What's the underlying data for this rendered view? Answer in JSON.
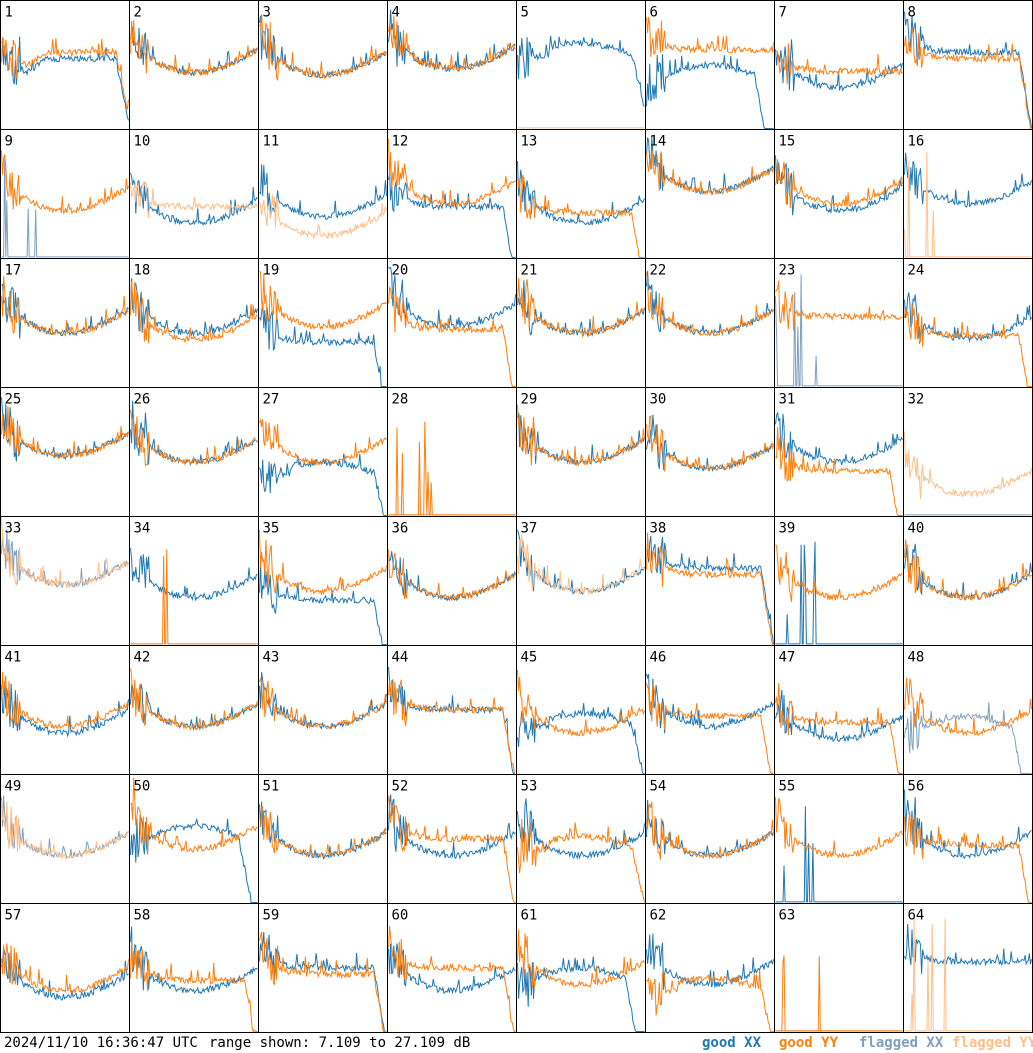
{
  "colors": {
    "good_xx": "#1f77b4",
    "good_yy": "#ff7f0e",
    "flagged_xx": "#7f9fbf",
    "flagged_yy": "#ffbf87",
    "frame": "#000000"
  },
  "footer": {
    "timestamp": "2024/11/10 16:36:47 UTC",
    "range_text": "range shown: 7.109 to 27.109 dB",
    "legend": {
      "good_xx": "good XX",
      "good_yy": "good YY",
      "flagged_xx": "flagged XX",
      "flagged_yy": "flagged YY"
    }
  },
  "chart_data": {
    "type": "line",
    "layout": "8x8 small multiples",
    "ylim": [
      7.109,
      27.109
    ],
    "yunit": "dB",
    "panels": [
      {
        "id": 1,
        "xx": "good",
        "yy": "good",
        "xx_shape": "plateau",
        "yy_shape": "plateau-dip",
        "xx_level": 0.55,
        "yy_level": 0.6
      },
      {
        "id": 2,
        "xx": "good",
        "yy": "good",
        "xx_shape": "u",
        "yy_shape": "u",
        "xx_level": 0.62,
        "yy_level": 0.62
      },
      {
        "id": 3,
        "xx": "good",
        "yy": "good",
        "xx_shape": "u",
        "yy_shape": "u",
        "xx_level": 0.6,
        "yy_level": 0.6
      },
      {
        "id": 4,
        "xx": "good",
        "yy": "good",
        "xx_shape": "u",
        "yy_shape": "u",
        "xx_level": 0.65,
        "yy_level": 0.65
      },
      {
        "id": 5,
        "xx": "good",
        "yy": "flagged",
        "xx_shape": "hump",
        "yy_shape": "flat-low",
        "xx_level": 0.55,
        "yy_level": 0.0
      },
      {
        "id": 6,
        "xx": "good",
        "yy": "good",
        "xx_shape": "hump-drop",
        "yy_shape": "flat-high",
        "xx_level": 0.35,
        "yy_level": 0.62
      },
      {
        "id": 7,
        "xx": "good",
        "yy": "good",
        "xx_shape": "u",
        "yy_shape": "flat-high",
        "xx_level": 0.5,
        "yy_level": 0.45
      },
      {
        "id": 8,
        "xx": "good",
        "yy": "good",
        "xx_shape": "flat-drop",
        "yy_shape": "flat-drop",
        "xx_level": 0.6,
        "yy_level": 0.55
      },
      {
        "id": 9,
        "xx": "flagged",
        "yy": "good",
        "xx_shape": "spikes",
        "yy_shape": "u",
        "xx_level": 0.05,
        "yy_level": 0.55
      },
      {
        "id": 10,
        "xx": "good",
        "yy": "flagged",
        "xx_shape": "u",
        "yy_shape": "flat-high",
        "xx_level": 0.45,
        "yy_level": 0.4
      },
      {
        "id": 11,
        "xx": "good",
        "yy": "flagged",
        "xx_shape": "u",
        "yy_shape": "u",
        "xx_level": 0.5,
        "yy_level": 0.35
      },
      {
        "id": 12,
        "xx": "good",
        "yy": "good",
        "xx_shape": "flat-drop",
        "yy_shape": "u",
        "xx_level": 0.4,
        "yy_level": 0.6
      },
      {
        "id": 13,
        "xx": "good",
        "yy": "good",
        "xx_shape": "u",
        "yy_shape": "flat-drop",
        "xx_level": 0.45,
        "yy_level": 0.35
      },
      {
        "id": 14,
        "xx": "good",
        "yy": "good",
        "xx_shape": "u",
        "yy_shape": "u",
        "xx_level": 0.7,
        "yy_level": 0.7
      },
      {
        "id": 15,
        "xx": "good",
        "yy": "good",
        "xx_shape": "u",
        "yy_shape": "u",
        "xx_level": 0.55,
        "yy_level": 0.6
      },
      {
        "id": 16,
        "xx": "good",
        "yy": "flagged",
        "xx_shape": "u",
        "yy_shape": "spikes",
        "xx_level": 0.6,
        "yy_level": 0.0
      },
      {
        "id": 17,
        "xx": "good",
        "yy": "good",
        "xx_shape": "u",
        "yy_shape": "u",
        "xx_level": 0.6,
        "yy_level": 0.6
      },
      {
        "id": 18,
        "xx": "good",
        "yy": "good",
        "xx_shape": "u",
        "yy_shape": "u",
        "xx_level": 0.6,
        "yy_level": 0.55
      },
      {
        "id": 19,
        "xx": "good",
        "yy": "good",
        "xx_shape": "flat-drop",
        "yy_shape": "u",
        "xx_level": 0.35,
        "yy_level": 0.65
      },
      {
        "id": 20,
        "xx": "good",
        "yy": "good",
        "xx_shape": "u",
        "yy_shape": "flat-drop",
        "xx_level": 0.65,
        "yy_level": 0.45
      },
      {
        "id": 21,
        "xx": "good",
        "yy": "good",
        "xx_shape": "u",
        "yy_shape": "u",
        "xx_level": 0.6,
        "yy_level": 0.6
      },
      {
        "id": 22,
        "xx": "good",
        "yy": "good",
        "xx_shape": "u",
        "yy_shape": "u",
        "xx_level": 0.6,
        "yy_level": 0.6
      },
      {
        "id": 23,
        "xx": "flagged",
        "yy": "good",
        "xx_shape": "spikes",
        "yy_shape": "flat-high",
        "xx_level": 0.3,
        "yy_level": 0.55
      },
      {
        "id": 24,
        "xx": "good",
        "yy": "good",
        "xx_shape": "u",
        "yy_shape": "flat-drop",
        "xx_level": 0.55,
        "yy_level": 0.4
      },
      {
        "id": 25,
        "xx": "good",
        "yy": "good",
        "xx_shape": "u",
        "yy_shape": "u",
        "xx_level": 0.65,
        "yy_level": 0.65
      },
      {
        "id": 26,
        "xx": "good",
        "yy": "good",
        "xx_shape": "u",
        "yy_shape": "u",
        "xx_level": 0.6,
        "yy_level": 0.6
      },
      {
        "id": 27,
        "xx": "good",
        "yy": "good",
        "xx_shape": "hump",
        "yy_shape": "u",
        "xx_level": 0.3,
        "yy_level": 0.6
      },
      {
        "id": 28,
        "xx": "flagged",
        "yy": "good",
        "xx_shape": "flat-low",
        "yy_shape": "spikes",
        "xx_level": 0.0,
        "yy_level": 0.0
      },
      {
        "id": 29,
        "xx": "good",
        "yy": "good",
        "xx_shape": "u",
        "yy_shape": "u",
        "xx_level": 0.6,
        "yy_level": 0.6
      },
      {
        "id": 30,
        "xx": "good",
        "yy": "good",
        "xx_shape": "u",
        "yy_shape": "u",
        "xx_level": 0.55,
        "yy_level": 0.55
      },
      {
        "id": 31,
        "xx": "good",
        "yy": "good",
        "xx_shape": "u",
        "yy_shape": "flat-drop",
        "xx_level": 0.6,
        "yy_level": 0.35
      },
      {
        "id": 32,
        "xx": "flagged",
        "yy": "flagged",
        "xx_shape": "flat-low",
        "yy_shape": "u",
        "xx_level": 0.0,
        "yy_level": 0.35
      },
      {
        "id": 33,
        "xx": "flagged",
        "yy": "flagged",
        "xx_shape": "u",
        "yy_shape": "u",
        "xx_level": 0.65,
        "yy_level": 0.65
      },
      {
        "id": 34,
        "xx": "good",
        "yy": "good",
        "xx_shape": "u",
        "yy_shape": "spikes",
        "xx_level": 0.55,
        "yy_level": 0.0
      },
      {
        "id": 35,
        "xx": "good",
        "yy": "good",
        "xx_shape": "flat-drop",
        "yy_shape": "u",
        "xx_level": 0.35,
        "yy_level": 0.6
      },
      {
        "id": 36,
        "xx": "good",
        "yy": "good",
        "xx_shape": "u",
        "yy_shape": "u",
        "xx_level": 0.55,
        "yy_level": 0.55
      },
      {
        "id": 37,
        "xx": "good",
        "yy": "flagged",
        "xx_shape": "u",
        "yy_shape": "u",
        "xx_level": 0.6,
        "yy_level": 0.6
      },
      {
        "id": 38,
        "xx": "good",
        "yy": "good",
        "xx_shape": "flat-drop",
        "yy_shape": "flat-drop",
        "xx_level": 0.6,
        "yy_level": 0.55
      },
      {
        "id": 39,
        "xx": "good",
        "yy": "good",
        "xx_shape": "spikes",
        "yy_shape": "u",
        "xx_level": 0.0,
        "yy_level": 0.55
      },
      {
        "id": 40,
        "xx": "good",
        "yy": "good",
        "xx_shape": "u",
        "yy_shape": "u",
        "xx_level": 0.55,
        "yy_level": 0.55
      },
      {
        "id": 41,
        "xx": "good",
        "yy": "good",
        "xx_shape": "u",
        "yy_shape": "u",
        "xx_level": 0.5,
        "yy_level": 0.55
      },
      {
        "id": 42,
        "xx": "good",
        "yy": "good",
        "xx_shape": "u",
        "yy_shape": "u",
        "xx_level": 0.55,
        "yy_level": 0.55
      },
      {
        "id": 43,
        "xx": "good",
        "yy": "good",
        "xx_shape": "u",
        "yy_shape": "u",
        "xx_level": 0.55,
        "yy_level": 0.55
      },
      {
        "id": 44,
        "xx": "good",
        "yy": "good",
        "xx_shape": "flat-drop",
        "yy_shape": "flat-drop",
        "xx_level": 0.5,
        "yy_level": 0.5
      },
      {
        "id": 45,
        "xx": "good",
        "yy": "good",
        "xx_shape": "hump",
        "yy_shape": "u",
        "xx_level": 0.35,
        "yy_level": 0.5
      },
      {
        "id": 46,
        "xx": "good",
        "yy": "good",
        "xx_shape": "u",
        "yy_shape": "flat-drop",
        "xx_level": 0.55,
        "yy_level": 0.45
      },
      {
        "id": 47,
        "xx": "good",
        "yy": "good",
        "xx_shape": "u",
        "yy_shape": "flat-drop",
        "xx_level": 0.45,
        "yy_level": 0.4
      },
      {
        "id": 48,
        "xx": "flagged",
        "yy": "good",
        "xx_shape": "hump-drop",
        "yy_shape": "u",
        "xx_level": 0.3,
        "yy_level": 0.5
      },
      {
        "id": 49,
        "xx": "flagged",
        "yy": "flagged",
        "xx_shape": "u",
        "yy_shape": "u",
        "xx_level": 0.55,
        "yy_level": 0.55
      },
      {
        "id": 50,
        "xx": "good",
        "yy": "good",
        "xx_shape": "hump-drop",
        "yy_shape": "u",
        "xx_level": 0.45,
        "yy_level": 0.6
      },
      {
        "id": 51,
        "xx": "good",
        "yy": "good",
        "xx_shape": "u",
        "yy_shape": "u",
        "xx_level": 0.55,
        "yy_level": 0.55
      },
      {
        "id": 52,
        "xx": "good",
        "yy": "good",
        "xx_shape": "u",
        "yy_shape": "flat-drop",
        "xx_level": 0.55,
        "yy_level": 0.5
      },
      {
        "id": 53,
        "xx": "good",
        "yy": "good",
        "xx_shape": "u",
        "yy_shape": "hump",
        "xx_level": 0.55,
        "yy_level": 0.4
      },
      {
        "id": 54,
        "xx": "good",
        "yy": "good",
        "xx_shape": "u",
        "yy_shape": "u",
        "xx_level": 0.55,
        "yy_level": 0.55
      },
      {
        "id": 55,
        "xx": "good",
        "yy": "good",
        "xx_shape": "spikes",
        "yy_shape": "u",
        "xx_level": 0.0,
        "yy_level": 0.55
      },
      {
        "id": 56,
        "xx": "good",
        "yy": "good",
        "xx_shape": "u",
        "yy_shape": "flat-drop",
        "xx_level": 0.55,
        "yy_level": 0.45
      },
      {
        "id": 57,
        "xx": "good",
        "yy": "good",
        "xx_shape": "u",
        "yy_shape": "u",
        "xx_level": 0.45,
        "yy_level": 0.5
      },
      {
        "id": 58,
        "xx": "good",
        "yy": "good",
        "xx_shape": "u",
        "yy_shape": "flat-drop",
        "xx_level": 0.5,
        "yy_level": 0.4
      },
      {
        "id": 59,
        "xx": "good",
        "yy": "good",
        "xx_shape": "flat-drop",
        "yy_shape": "flat-drop",
        "xx_level": 0.5,
        "yy_level": 0.45
      },
      {
        "id": 60,
        "xx": "good",
        "yy": "good",
        "xx_shape": "u",
        "yy_shape": "flat-drop",
        "xx_level": 0.5,
        "yy_level": 0.5
      },
      {
        "id": 61,
        "xx": "good",
        "yy": "good",
        "xx_shape": "hump-drop",
        "yy_shape": "u",
        "xx_level": 0.35,
        "yy_level": 0.55
      },
      {
        "id": 62,
        "xx": "good",
        "yy": "good",
        "xx_shape": "u",
        "yy_shape": "hump",
        "xx_level": 0.55,
        "yy_level": 0.3
      },
      {
        "id": 63,
        "xx": "flagged",
        "yy": "good",
        "xx_shape": "flat-low",
        "yy_shape": "spikes",
        "xx_level": 0.0,
        "yy_level": 0.0
      },
      {
        "id": 64,
        "xx": "good",
        "yy": "flagged",
        "xx_shape": "flat-high",
        "yy_shape": "spikes",
        "xx_level": 0.55,
        "yy_level": 0.0
      }
    ]
  }
}
